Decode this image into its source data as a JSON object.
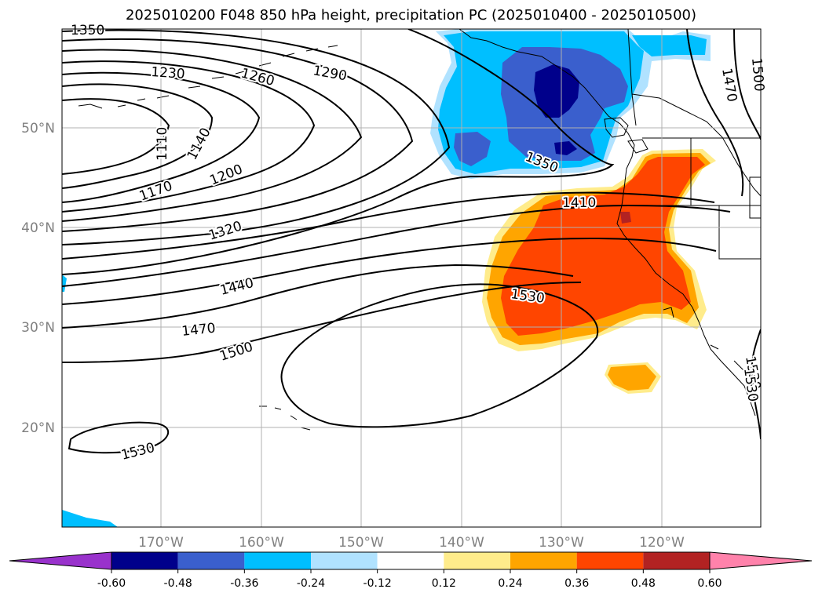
{
  "title": "2025010200 F048 850 hPa height, precipitation PC (2025010400 - 2025010500)",
  "lon_ticks": [
    "170°W",
    "160°W",
    "150°W",
    "140°W",
    "130°W",
    "120°W"
  ],
  "lat_ticks": [
    "50°N",
    "40°N",
    "30°N",
    "20°N"
  ],
  "contour_labels": [
    "1350",
    "1230",
    "1260",
    "1290",
    "1110",
    "1140",
    "1170",
    "1200",
    "1320",
    "1350",
    "1410",
    "1440",
    "1470",
    "1500",
    "1530",
    "1530",
    "1530",
    "1470",
    "1500",
    "1530"
  ],
  "colorbar": {
    "ticks": [
      "-0.60",
      "-0.48",
      "-0.36",
      "-0.24",
      "-0.12",
      "0.12",
      "0.24",
      "0.36",
      "0.48",
      "0.60"
    ],
    "colors": [
      "#9932cc",
      "#00008b",
      "#3a5fcd",
      "#00bfff",
      "#b0e2ff",
      "#ffffff",
      "#ffec8b",
      "#ffa500",
      "#ff4500",
      "#b22222",
      "#ff82ab"
    ]
  },
  "fill_colors": {
    "light_blue": "#b0e2ff",
    "sky_blue": "#00bfff",
    "royal_blue": "#3a5fcd",
    "navy": "#00008b",
    "light_yellow": "#ffec8b",
    "orange": "#ffa500",
    "red_orange": "#ff4500",
    "firebrick": "#b22222"
  }
}
